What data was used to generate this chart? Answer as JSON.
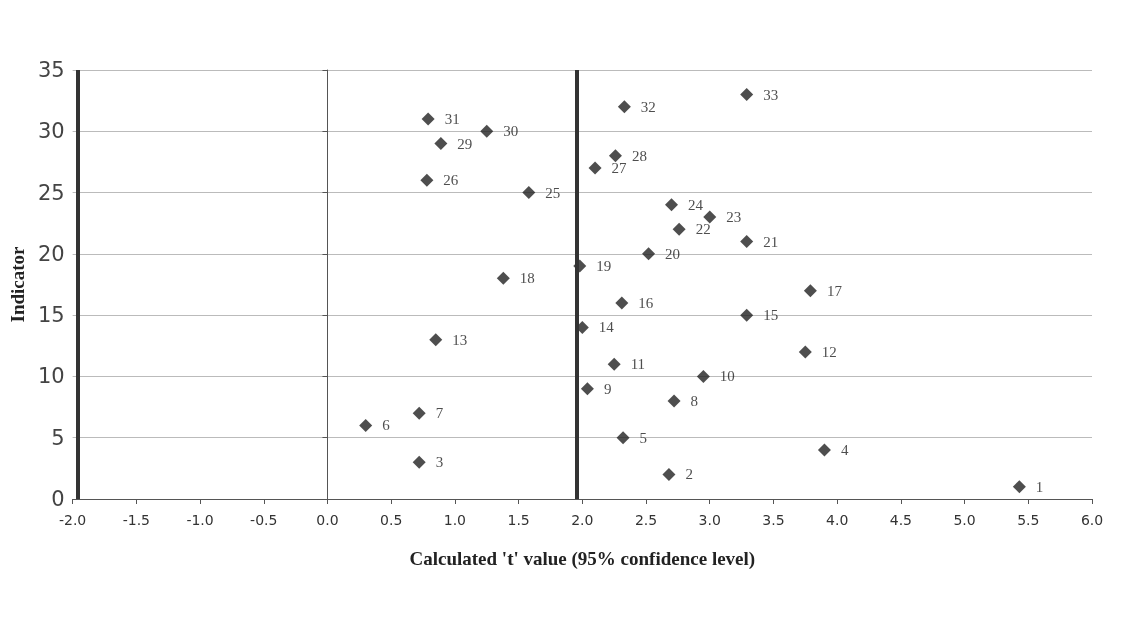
{
  "chart_data": {
    "type": "scatter",
    "xlabel": "Calculated 't' value (95% confidence level)",
    "ylabel": "Indicator",
    "x": [
      5.43,
      2.68,
      0.72,
      3.9,
      2.32,
      0.3,
      0.72,
      2.72,
      2.04,
      2.95,
      2.25,
      3.75,
      0.85,
      2.0,
      3.29,
      2.31,
      3.79,
      1.38,
      1.98,
      2.52,
      3.29,
      2.76,
      3.0,
      2.7,
      1.58,
      0.78,
      2.1,
      2.26,
      0.89,
      1.25,
      0.79,
      2.33,
      3.29
    ],
    "values": [
      1,
      2,
      3,
      4,
      5,
      6,
      7,
      8,
      9,
      10,
      11,
      12,
      13,
      14,
      15,
      16,
      17,
      18,
      19,
      20,
      21,
      22,
      23,
      24,
      25,
      26,
      27,
      28,
      29,
      30,
      31,
      32,
      33
    ],
    "color": "#222222",
    "marker": "diamond",
    "data_labels": true,
    "grid": "y",
    "xlim": [
      -2,
      6
    ],
    "xticks": [
      {
        "value": -2,
        "label": "-2.0"
      },
      {
        "value": -1.5,
        "label": "-1.5"
      },
      {
        "value": -1,
        "label": "-1.0"
      },
      {
        "value": -0.5,
        "label": "-0.5"
      },
      {
        "value": 0,
        "label": "0.0"
      },
      {
        "value": 0.5,
        "label": "0.5"
      },
      {
        "value": 1,
        "label": "1.0"
      },
      {
        "value": 1.5,
        "label": "1.5"
      },
      {
        "value": 2,
        "label": "2.0"
      },
      {
        "value": 2.5,
        "label": "2.5"
      },
      {
        "value": 3,
        "label": "3.0"
      },
      {
        "value": 3.5,
        "label": "3.5"
      },
      {
        "value": 4,
        "label": "4.0"
      },
      {
        "value": 4.5,
        "label": "4.5"
      },
      {
        "value": 5,
        "label": "5.0"
      },
      {
        "value": 5.5,
        "label": "5.5"
      },
      {
        "value": 6,
        "label": "6.0"
      }
    ],
    "ylim": [
      0,
      35
    ],
    "yticks": [
      0,
      5,
      10,
      15,
      20,
      25,
      30,
      35
    ],
    "ref_lines": [
      {
        "axis": "x",
        "value": -1.96,
        "color": "#333333",
        "line_style": "solid"
      },
      {
        "axis": "x",
        "value": 1.96,
        "color": "#333333",
        "line_style": "solid"
      }
    ]
  }
}
